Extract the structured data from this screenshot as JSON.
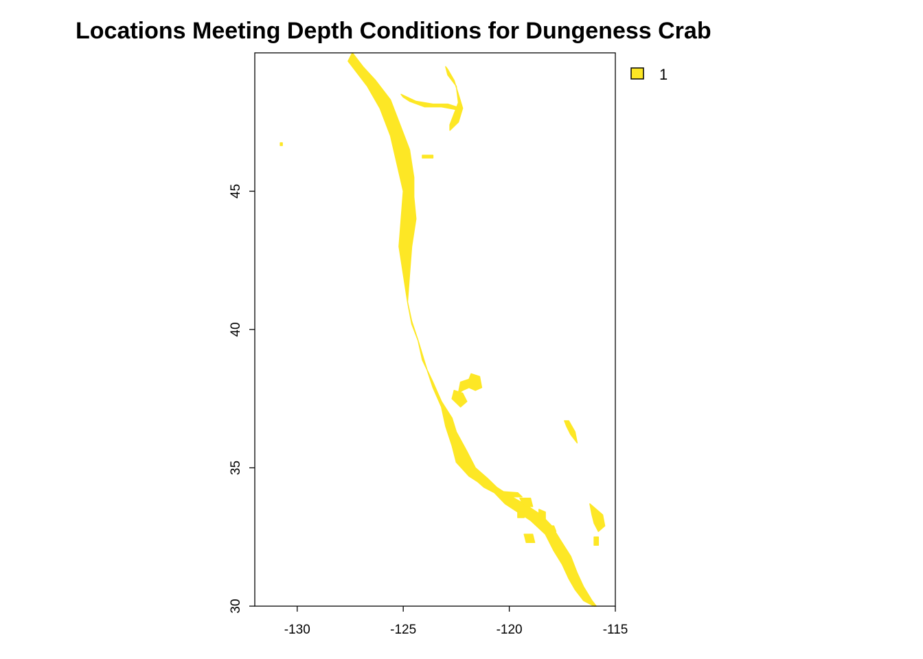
{
  "title": "Locations Meeting Depth Conditions for Dungeness Crab",
  "colors": {
    "habitat_fill": "#FDE725",
    "frame": "#000000",
    "background": "#FFFFFF"
  },
  "legend": {
    "entries": [
      {
        "label": "1",
        "color": "#FDE725"
      }
    ]
  },
  "chart_data": {
    "type": "map",
    "xlim": [
      -132,
      -115
    ],
    "ylim": [
      30,
      50
    ],
    "x_ticks": [
      -130,
      -125,
      -120,
      -115
    ],
    "x_tick_labels": [
      "-130",
      "-125",
      "-120",
      "-115"
    ],
    "y_ticks": [
      30,
      35,
      40,
      45
    ],
    "y_tick_labels": [
      "30",
      "35",
      "40",
      "45"
    ],
    "regions": [
      {
        "name": "coast-band",
        "lon": [
          -127.4,
          -126.9,
          -126.3,
          -125.6,
          -125.2,
          -124.7,
          -124.5,
          -124.5,
          -124.4,
          -124.6,
          -124.7,
          -124.8,
          -124.6,
          -124.3,
          -123.9,
          -123.6,
          -123.2,
          -123.0,
          -122.7,
          -122.5,
          -121.9,
          -121.5,
          -121.2,
          -120.7,
          -120.2,
          -119.6,
          -119.0,
          -118.3,
          -117.9,
          -117.5,
          -117.2,
          -116.9,
          -116.5,
          -116.0,
          -115.9,
          -116.1,
          -116.5,
          -116.8,
          -117.1,
          -117.6,
          -118.0,
          -118.5,
          -119.3,
          -120.0,
          -120.6,
          -121.0,
          -121.6,
          -122.0,
          -122.5,
          -122.7,
          -123.2,
          -123.6,
          -124.1,
          -124.3,
          -124.6,
          -124.8,
          -125.0,
          -125.2,
          -125.1,
          -125.0,
          -125.3,
          -125.6,
          -126.1,
          -126.7,
          -127.6
        ],
        "lat": [
          50.0,
          49.5,
          49.0,
          48.3,
          47.5,
          46.5,
          45.5,
          44.8,
          44.0,
          43.0,
          42.0,
          41.0,
          40.3,
          39.6,
          38.6,
          37.9,
          37.2,
          36.5,
          35.8,
          35.2,
          34.7,
          34.5,
          34.3,
          34.1,
          33.7,
          33.4,
          33.1,
          32.6,
          32.0,
          31.5,
          31.0,
          30.6,
          30.2,
          30.0,
          30.0,
          30.2,
          30.7,
          31.2,
          31.8,
          32.4,
          32.9,
          33.3,
          33.7,
          34.0,
          34.3,
          34.6,
          35.0,
          35.6,
          36.3,
          36.8,
          37.4,
          38.1,
          38.9,
          39.6,
          40.2,
          41.0,
          42.0,
          43.0,
          44.0,
          45.0,
          46.0,
          47.0,
          48.0,
          48.8,
          49.7
        ]
      },
      {
        "name": "strait-juan-de-fuca",
        "lon": [
          -125.1,
          -124.4,
          -123.6,
          -122.9,
          -122.5,
          -122.5,
          -123.2,
          -124.0,
          -124.7,
          -125.0
        ],
        "lat": [
          48.5,
          48.25,
          48.15,
          48.15,
          48.05,
          47.95,
          48.05,
          48.05,
          48.25,
          48.4
        ]
      },
      {
        "name": "puget-sound",
        "lon": [
          -122.9,
          -122.6,
          -122.4,
          -122.2,
          -122.4,
          -122.8,
          -122.8,
          -122.6,
          -122.4,
          -122.5,
          -122.9,
          -123.0
        ],
        "lat": [
          49.4,
          49.0,
          48.5,
          48.0,
          47.5,
          47.2,
          47.4,
          47.8,
          48.2,
          48.8,
          49.2,
          49.5
        ]
      },
      {
        "name": "columbia-estuary",
        "lon": [
          -124.1,
          -123.6,
          -123.6,
          -124.1
        ],
        "lat": [
          46.3,
          46.3,
          46.2,
          46.2
        ]
      },
      {
        "name": "offshore-speck",
        "lon": [
          -130.8,
          -130.7,
          -130.7,
          -130.8
        ],
        "lat": [
          46.75,
          46.75,
          46.65,
          46.65
        ]
      },
      {
        "name": "farallon-patch",
        "lon": [
          -122.3,
          -121.9,
          -121.8,
          -121.4,
          -121.3,
          -121.6,
          -121.9,
          -122.2,
          -122.4
        ],
        "lat": [
          38.1,
          38.2,
          38.4,
          38.3,
          37.9,
          37.8,
          37.9,
          37.8,
          37.7
        ]
      },
      {
        "name": "sf-bay-flank",
        "lon": [
          -122.6,
          -122.2,
          -122.0,
          -122.3,
          -122.7
        ],
        "lat": [
          37.8,
          37.7,
          37.4,
          37.2,
          37.5
        ]
      },
      {
        "name": "inland-sliver",
        "lon": [
          -117.4,
          -117.2,
          -116.9,
          -116.8,
          -117.1,
          -117.3
        ],
        "lat": [
          36.7,
          36.7,
          36.3,
          35.9,
          36.2,
          36.5
        ]
      },
      {
        "name": "salton-patch",
        "lon": [
          -116.2,
          -115.9,
          -115.6,
          -115.5,
          -115.8,
          -116.0,
          -116.1
        ],
        "lat": [
          33.7,
          33.5,
          33.3,
          32.9,
          32.7,
          33.0,
          33.3
        ]
      },
      {
        "name": "salton-drop",
        "lon": [
          -116.0,
          -115.8,
          -115.8,
          -116.0
        ],
        "lat": [
          32.5,
          32.5,
          32.2,
          32.2
        ]
      },
      {
        "name": "channel-island-west",
        "lon": [
          -120.5,
          -119.6,
          -119.4,
          -120.0,
          -120.5
        ],
        "lat": [
          34.15,
          34.1,
          33.95,
          33.95,
          34.0
        ]
      },
      {
        "name": "channel-island-east",
        "lon": [
          -119.5,
          -119.0,
          -118.9,
          -119.3
        ],
        "lat": [
          33.9,
          33.9,
          33.6,
          33.6
        ]
      },
      {
        "name": "san-clemente-island",
        "lon": [
          -118.6,
          -118.3,
          -118.3,
          -118.6
        ],
        "lat": [
          33.5,
          33.4,
          33.1,
          33.1
        ]
      },
      {
        "name": "san-nicolas-island",
        "lon": [
          -119.6,
          -119.3,
          -119.3,
          -119.6
        ],
        "lat": [
          33.4,
          33.4,
          33.2,
          33.2
        ]
      },
      {
        "name": "cortes-patch",
        "lon": [
          -119.3,
          -118.9,
          -118.8,
          -119.2
        ],
        "lat": [
          32.6,
          32.6,
          32.3,
          32.3
        ]
      },
      {
        "name": "coastal-fleck",
        "lon": [
          -118.2,
          -117.9,
          -117.8,
          -118.1
        ],
        "lat": [
          32.9,
          32.9,
          32.7,
          32.7
        ]
      }
    ]
  }
}
